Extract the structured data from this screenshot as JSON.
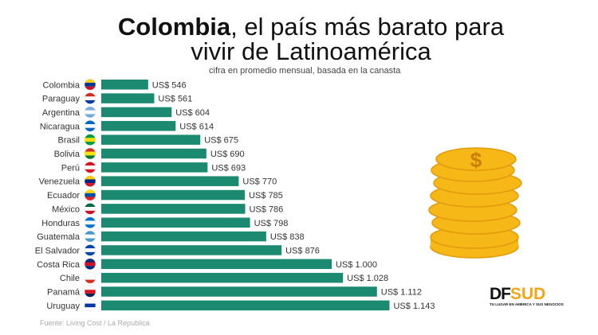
{
  "header": {
    "title_bold": "Colombia",
    "title_rest": ", el país más barato para",
    "title_line2": "vivir de Latinoamérica",
    "subtitle": "cifra en promedio mensual, basada en la canasta"
  },
  "source": "Fuente: Living Cost / La Republica",
  "logo": {
    "df": "DF",
    "sud": "SUD",
    "tagline": "TU LUGAR EN AMÉRICA Y SUS NEGOCIOS"
  },
  "colors": {
    "bar": "#1b8a70",
    "accent": "#f2a516"
  },
  "chart_data": {
    "type": "bar",
    "orientation": "horizontal",
    "title": "Colombia, el país más barato para vivir de Latinoamérica",
    "xlabel": "",
    "ylabel": "",
    "xlim": [
      430,
      1160
    ],
    "categories": [
      "Colombia",
      "Paraguay",
      "Argentina",
      "Nicaragua",
      "Brasil",
      "Bolivia",
      "Perú",
      "Venezuela",
      "Ecuador",
      "México",
      "Honduras",
      "Guatemala",
      "El Salvador",
      "Costa Rica",
      "Chile",
      "Panamá",
      "Uruguay"
    ],
    "values": [
      546,
      561,
      604,
      614,
      675,
      690,
      693,
      770,
      785,
      786,
      798,
      838,
      876,
      1000,
      1028,
      1112,
      1143
    ],
    "labels": [
      "US$ 546",
      "US$ 561",
      "US$ 604",
      "US$ 614",
      "US$ 675",
      "US$ 690",
      "US$ 693",
      "US$ 770",
      "US$ 785",
      "US$ 786",
      "US$ 798",
      "US$ 838",
      "US$ 876",
      "US$ 1.000",
      "US$ 1.028",
      "US$ 1.112",
      "US$ 1.143"
    ],
    "flags": [
      [
        "#fcd116",
        "#003893",
        "#ce1126"
      ],
      [
        "#d52b1e",
        "#fff",
        "#0038a8"
      ],
      [
        "#74acdf",
        "#fff",
        "#74acdf"
      ],
      [
        "#0067c6",
        "#fff",
        "#0067c6"
      ],
      [
        "#009c3b",
        "#ffdf00",
        "#009c3b"
      ],
      [
        "#d52b1e",
        "#f9e300",
        "#007934"
      ],
      [
        "#d91023",
        "#fff",
        "#d91023"
      ],
      [
        "#ffcc00",
        "#00247d",
        "#cf142b"
      ],
      [
        "#ffdd00",
        "#034ea2",
        "#ed1c24"
      ],
      [
        "#006847",
        "#fff",
        "#ce1126"
      ],
      [
        "#0073cf",
        "#fff",
        "#0073cf"
      ],
      [
        "#4997d0",
        "#fff",
        "#4997d0"
      ],
      [
        "#0047ab",
        "#fff",
        "#0047ab"
      ],
      [
        "#002b7f",
        "#ce1126",
        "#002b7f"
      ],
      [
        "#fff",
        "#fff",
        "#d52b1e"
      ],
      [
        "#fff",
        "#da121a",
        "#072357"
      ],
      [
        "#fff",
        "#0038a8",
        "#fff"
      ]
    ]
  }
}
